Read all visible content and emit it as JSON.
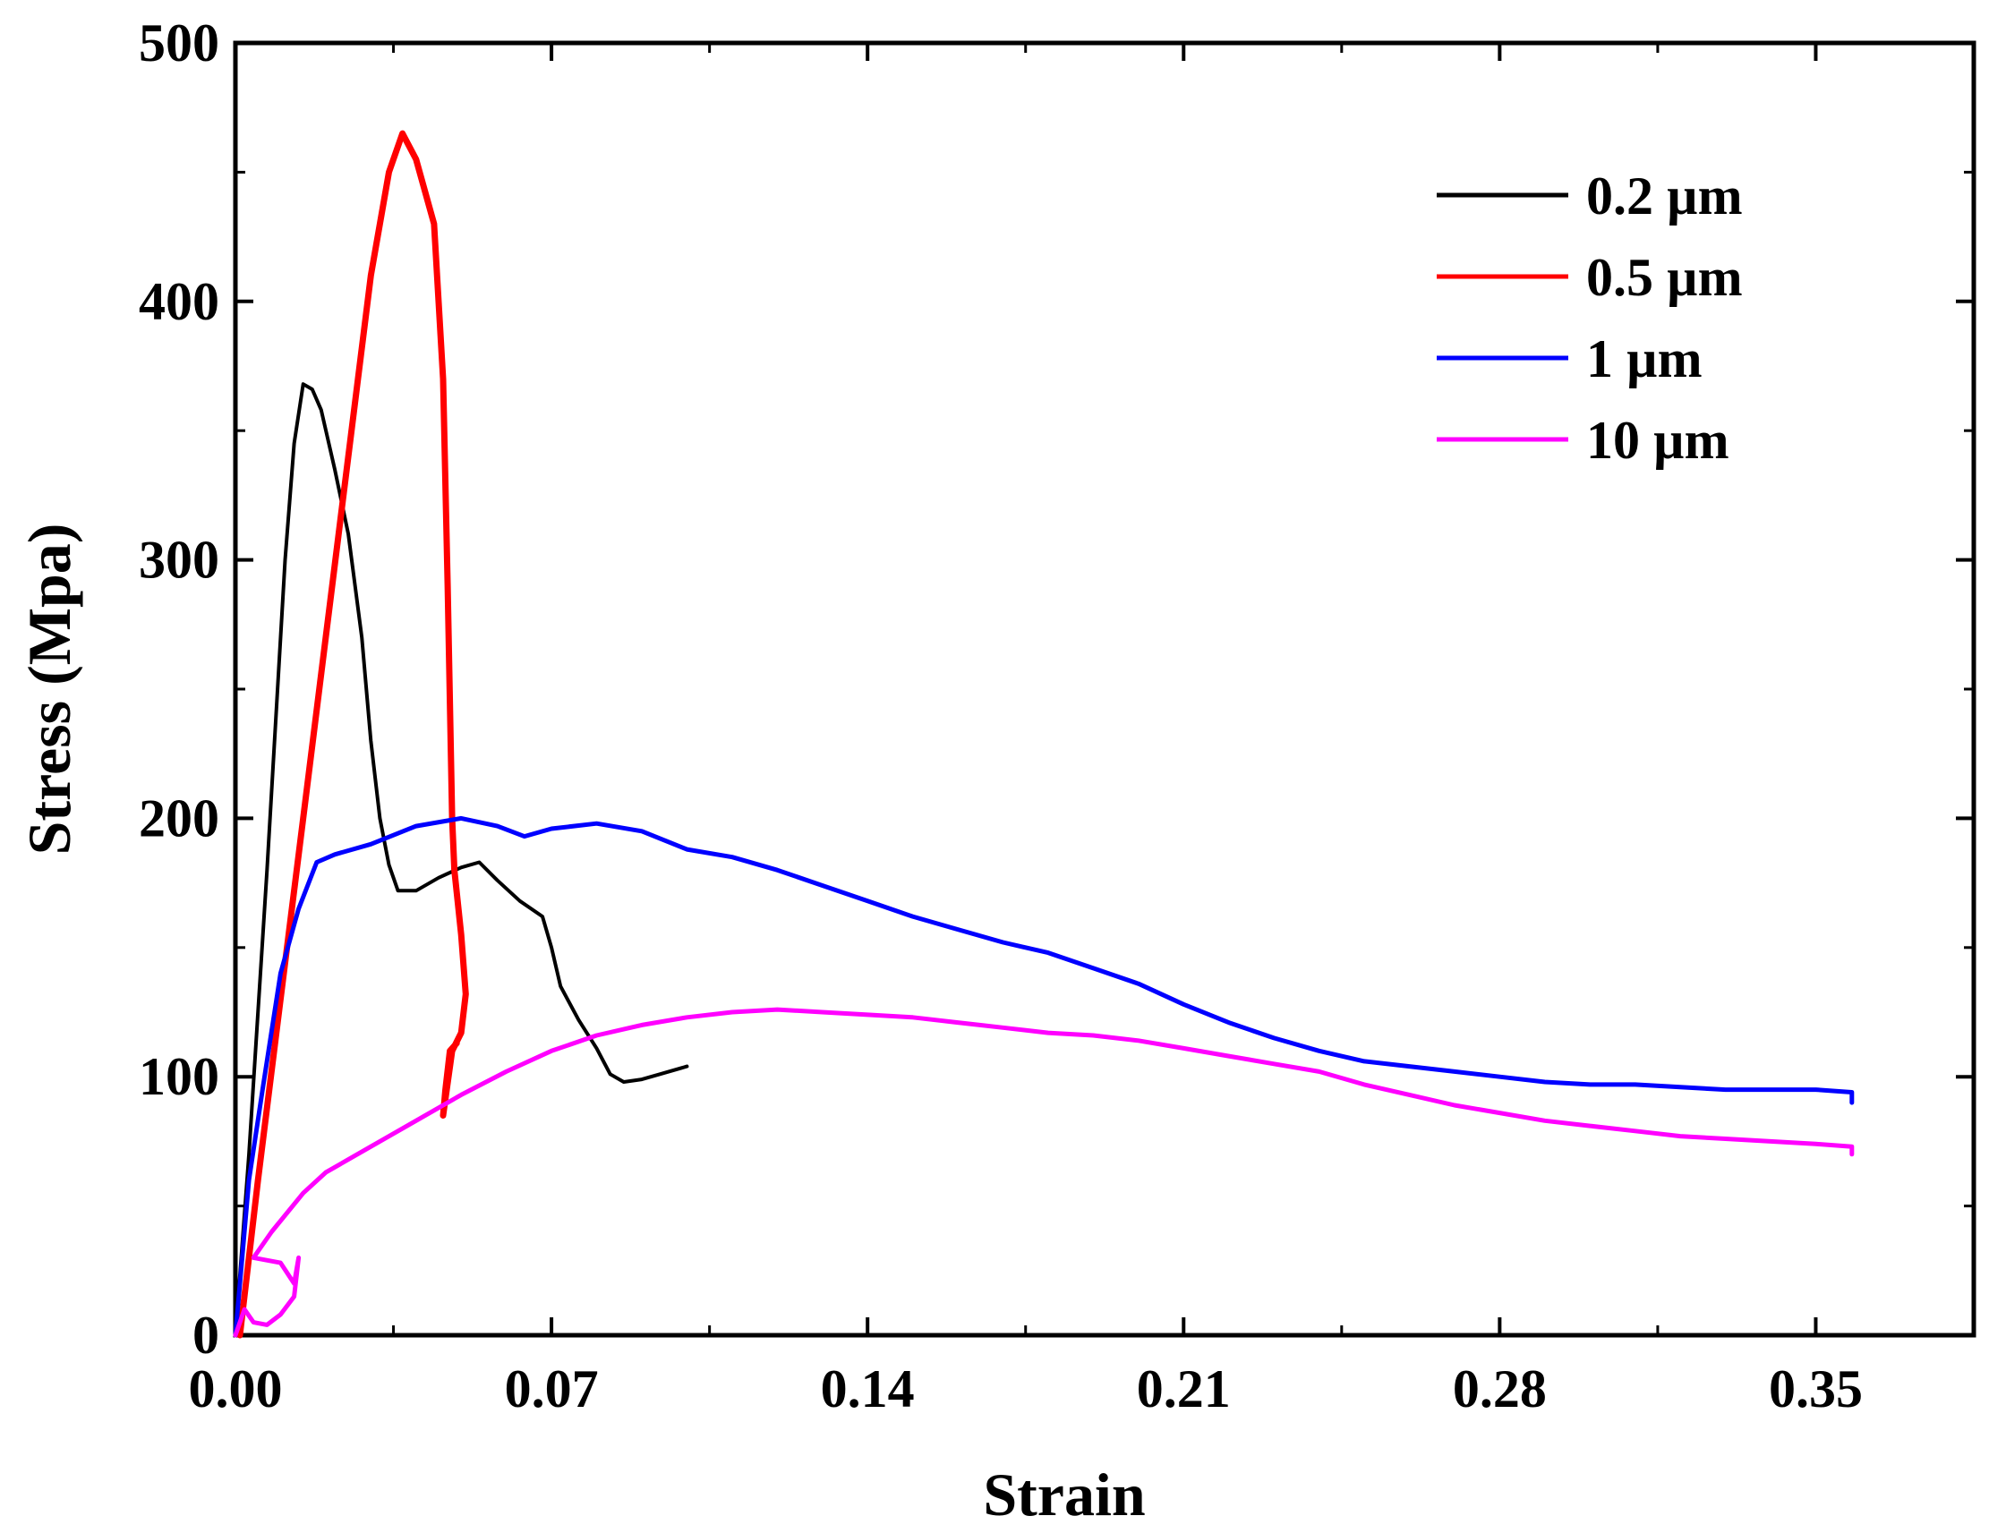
{
  "chart_data": {
    "type": "line",
    "title": "",
    "xlabel": "Strain",
    "ylabel": "Stress (Mpa)",
    "xlim": [
      0,
      0.385
    ],
    "ylim": [
      0,
      500
    ],
    "x_ticks": [
      0.0,
      0.07,
      0.14,
      0.21,
      0.28,
      0.35
    ],
    "x_tick_labels": [
      "0.00",
      "0.07",
      "0.14",
      "0.21",
      "0.28",
      "0.35"
    ],
    "y_ticks": [
      0,
      100,
      200,
      300,
      400,
      500
    ],
    "y_tick_labels": [
      "0",
      "100",
      "200",
      "300",
      "400",
      "500"
    ],
    "grid": false,
    "legend_position": "top-right",
    "series": [
      {
        "name": "0.2 µm",
        "color": "#000000",
        "points": [
          [
            0,
            0
          ],
          [
            0.003,
            70
          ],
          [
            0.007,
            180
          ],
          [
            0.011,
            300
          ],
          [
            0.013,
            345
          ],
          [
            0.015,
            368
          ],
          [
            0.017,
            366
          ],
          [
            0.019,
            358
          ],
          [
            0.022,
            335
          ],
          [
            0.025,
            310
          ],
          [
            0.028,
            270
          ],
          [
            0.03,
            230
          ],
          [
            0.032,
            200
          ],
          [
            0.034,
            182
          ],
          [
            0.036,
            172
          ],
          [
            0.04,
            172
          ],
          [
            0.045,
            177
          ],
          [
            0.05,
            181
          ],
          [
            0.054,
            183
          ],
          [
            0.058,
            176
          ],
          [
            0.063,
            168
          ],
          [
            0.068,
            162
          ],
          [
            0.07,
            150
          ],
          [
            0.072,
            135
          ],
          [
            0.076,
            122
          ],
          [
            0.08,
            111
          ],
          [
            0.083,
            101
          ],
          [
            0.086,
            98
          ],
          [
            0.09,
            99
          ],
          [
            0.094,
            101
          ],
          [
            0.1,
            104
          ]
        ]
      },
      {
        "name": "0.5 µm",
        "color": "#ff0000",
        "points": [
          [
            0.001,
            0
          ],
          [
            0.005,
            60
          ],
          [
            0.01,
            130
          ],
          [
            0.015,
            200
          ],
          [
            0.02,
            270
          ],
          [
            0.025,
            340
          ],
          [
            0.03,
            410
          ],
          [
            0.034,
            450
          ],
          [
            0.037,
            465
          ],
          [
            0.04,
            455
          ],
          [
            0.044,
            430
          ],
          [
            0.046,
            370
          ],
          [
            0.047,
            290
          ],
          [
            0.048,
            200
          ],
          [
            0.0485,
            180
          ],
          [
            0.05,
            155
          ],
          [
            0.051,
            132
          ],
          [
            0.05,
            117
          ],
          [
            0.048,
            110
          ],
          [
            0.046,
            85
          ],
          [
            0.0465,
            95
          ],
          [
            0.0475,
            110
          ],
          [
            0.049,
            113
          ]
        ]
      },
      {
        "name": "1 µm",
        "color": "#0000ff",
        "points": [
          [
            0,
            0
          ],
          [
            0.003,
            60
          ],
          [
            0.006,
            95
          ],
          [
            0.01,
            140
          ],
          [
            0.014,
            165
          ],
          [
            0.018,
            183
          ],
          [
            0.022,
            186
          ],
          [
            0.03,
            190
          ],
          [
            0.04,
            197
          ],
          [
            0.05,
            200
          ],
          [
            0.058,
            197
          ],
          [
            0.064,
            193
          ],
          [
            0.07,
            196
          ],
          [
            0.08,
            198
          ],
          [
            0.09,
            195
          ],
          [
            0.1,
            188
          ],
          [
            0.11,
            185
          ],
          [
            0.12,
            180
          ],
          [
            0.13,
            174
          ],
          [
            0.14,
            168
          ],
          [
            0.15,
            162
          ],
          [
            0.16,
            157
          ],
          [
            0.17,
            152
          ],
          [
            0.18,
            148
          ],
          [
            0.19,
            142
          ],
          [
            0.2,
            136
          ],
          [
            0.21,
            128
          ],
          [
            0.22,
            121
          ],
          [
            0.23,
            115
          ],
          [
            0.24,
            110
          ],
          [
            0.25,
            106
          ],
          [
            0.26,
            104
          ],
          [
            0.27,
            102
          ],
          [
            0.28,
            100
          ],
          [
            0.29,
            98
          ],
          [
            0.3,
            97
          ],
          [
            0.31,
            97
          ],
          [
            0.32,
            96
          ],
          [
            0.33,
            95
          ],
          [
            0.34,
            95
          ],
          [
            0.35,
            95
          ],
          [
            0.358,
            94
          ],
          [
            0.358,
            90
          ]
        ]
      },
      {
        "name": "10 µm",
        "color": "#ff00ff",
        "points": [
          [
            0,
            0
          ],
          [
            0.002,
            10
          ],
          [
            0.004,
            5
          ],
          [
            0.007,
            4
          ],
          [
            0.01,
            8
          ],
          [
            0.013,
            15
          ],
          [
            0.014,
            30
          ],
          [
            0.013,
            20
          ],
          [
            0.01,
            28
          ],
          [
            0.004,
            30
          ],
          [
            0.008,
            40
          ],
          [
            0.015,
            55
          ],
          [
            0.02,
            63
          ],
          [
            0.03,
            73
          ],
          [
            0.04,
            83
          ],
          [
            0.05,
            93
          ],
          [
            0.06,
            102
          ],
          [
            0.07,
            110
          ],
          [
            0.08,
            116
          ],
          [
            0.09,
            120
          ],
          [
            0.1,
            123
          ],
          [
            0.11,
            125
          ],
          [
            0.12,
            126
          ],
          [
            0.13,
            125
          ],
          [
            0.14,
            124
          ],
          [
            0.15,
            123
          ],
          [
            0.16,
            121
          ],
          [
            0.17,
            119
          ],
          [
            0.18,
            117
          ],
          [
            0.19,
            116
          ],
          [
            0.2,
            114
          ],
          [
            0.21,
            111
          ],
          [
            0.22,
            108
          ],
          [
            0.23,
            105
          ],
          [
            0.24,
            102
          ],
          [
            0.25,
            97
          ],
          [
            0.26,
            93
          ],
          [
            0.27,
            89
          ],
          [
            0.28,
            86
          ],
          [
            0.29,
            83
          ],
          [
            0.3,
            81
          ],
          [
            0.31,
            79
          ],
          [
            0.32,
            77
          ],
          [
            0.33,
            76
          ],
          [
            0.34,
            75
          ],
          [
            0.35,
            74
          ],
          [
            0.358,
            73
          ],
          [
            0.358,
            70
          ]
        ]
      }
    ]
  }
}
